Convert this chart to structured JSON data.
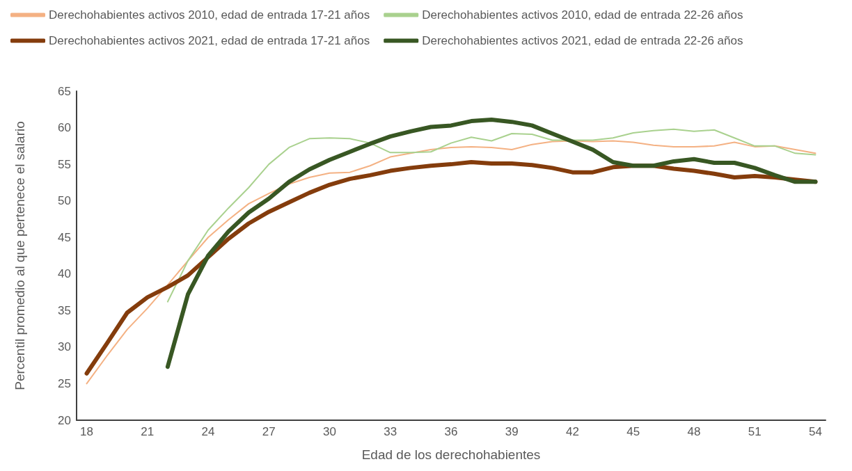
{
  "chart_data": {
    "type": "line",
    "xlabel": "Edad de los derechohabientes",
    "ylabel": "Percentil promedio al que pertenece el salario",
    "xlim": [
      17.5,
      54.5
    ],
    "xticks": [
      18,
      21,
      24,
      27,
      30,
      33,
      36,
      39,
      42,
      45,
      48,
      51,
      54
    ],
    "ylim": [
      20,
      65
    ],
    "yticks": [
      20,
      25,
      30,
      35,
      40,
      45,
      50,
      55,
      60,
      65
    ],
    "grid": false,
    "legend": "top",
    "marker": "none",
    "line_style": "solid",
    "series": [
      {
        "name": "Derechohabientes activos 2010, edad de entrada 17-21 años",
        "color": "#f4b183",
        "x": [
          18,
          19,
          20,
          21,
          22,
          23,
          24,
          25,
          26,
          27,
          28,
          29,
          30,
          31,
          32,
          33,
          34,
          35,
          36,
          37,
          38,
          39,
          40,
          41,
          42,
          43,
          44,
          45,
          46,
          47,
          48,
          49,
          50,
          51,
          52,
          53,
          54
        ],
        "values": [
          25.0,
          28.8,
          32.4,
          35.3,
          38.5,
          41.8,
          45.0,
          47.4,
          49.6,
          51.0,
          52.3,
          53.2,
          53.8,
          53.9,
          54.8,
          56.0,
          56.5,
          57.0,
          57.3,
          57.4,
          57.3,
          57.0,
          57.7,
          58.1,
          58.2,
          58.1,
          58.2,
          58.0,
          57.6,
          57.4,
          57.4,
          57.5,
          58.0,
          57.4,
          57.5,
          57.0,
          56.5
        ]
      },
      {
        "name": "Derechohabientes activos 2010, edad de entrada 22-26 años",
        "color": "#a9d18e",
        "x": [
          22,
          23,
          24,
          25,
          26,
          27,
          28,
          29,
          30,
          31,
          32,
          33,
          34,
          35,
          36,
          37,
          38,
          39,
          40,
          41,
          42,
          43,
          44,
          45,
          46,
          47,
          48,
          49,
          50,
          51,
          52,
          53,
          54
        ],
        "values": [
          36.2,
          41.8,
          46.0,
          49.0,
          51.8,
          55.0,
          57.3,
          58.5,
          58.6,
          58.5,
          57.9,
          56.6,
          56.6,
          56.7,
          57.9,
          58.7,
          58.2,
          59.2,
          59.1,
          58.3,
          58.3,
          58.3,
          58.6,
          59.3,
          59.6,
          59.8,
          59.5,
          59.7,
          58.6,
          57.5,
          57.5,
          56.5,
          56.3
        ]
      },
      {
        "name": "Derechohabientes activos 2021, edad de entrada 17-21 años",
        "color": "#843c0c",
        "x": [
          18,
          19,
          20,
          21,
          22,
          23,
          24,
          25,
          26,
          27,
          28,
          29,
          30,
          31,
          32,
          33,
          34,
          35,
          36,
          37,
          38,
          39,
          40,
          41,
          42,
          43,
          44,
          45,
          46,
          47,
          48,
          49,
          50,
          51,
          52,
          53,
          54
        ],
        "values": [
          26.4,
          30.5,
          34.7,
          36.8,
          38.2,
          39.8,
          42.3,
          44.8,
          46.9,
          48.5,
          49.8,
          51.1,
          52.2,
          53.0,
          53.5,
          54.1,
          54.5,
          54.8,
          55.0,
          55.3,
          55.1,
          55.1,
          54.9,
          54.5,
          53.9,
          53.9,
          54.6,
          54.8,
          54.8,
          54.4,
          54.1,
          53.7,
          53.2,
          53.4,
          53.2,
          52.9,
          52.6
        ]
      },
      {
        "name": "Derechohabientes activos 2021, edad de entrada 22-26 años",
        "color": "#385723",
        "x": [
          22,
          23,
          24,
          25,
          26,
          27,
          28,
          29,
          30,
          31,
          32,
          33,
          34,
          35,
          36,
          37,
          38,
          39,
          40,
          41,
          42,
          43,
          44,
          45,
          46,
          47,
          48,
          49,
          50,
          51,
          52,
          53,
          54
        ],
        "values": [
          27.3,
          37.2,
          42.5,
          45.8,
          48.4,
          50.3,
          52.6,
          54.3,
          55.6,
          56.7,
          57.8,
          58.8,
          59.5,
          60.1,
          60.3,
          60.9,
          61.1,
          60.8,
          60.3,
          59.2,
          58.1,
          57.0,
          55.3,
          54.8,
          54.8,
          55.4,
          55.7,
          55.2,
          55.2,
          54.5,
          53.5,
          52.6,
          52.6
        ]
      }
    ]
  }
}
